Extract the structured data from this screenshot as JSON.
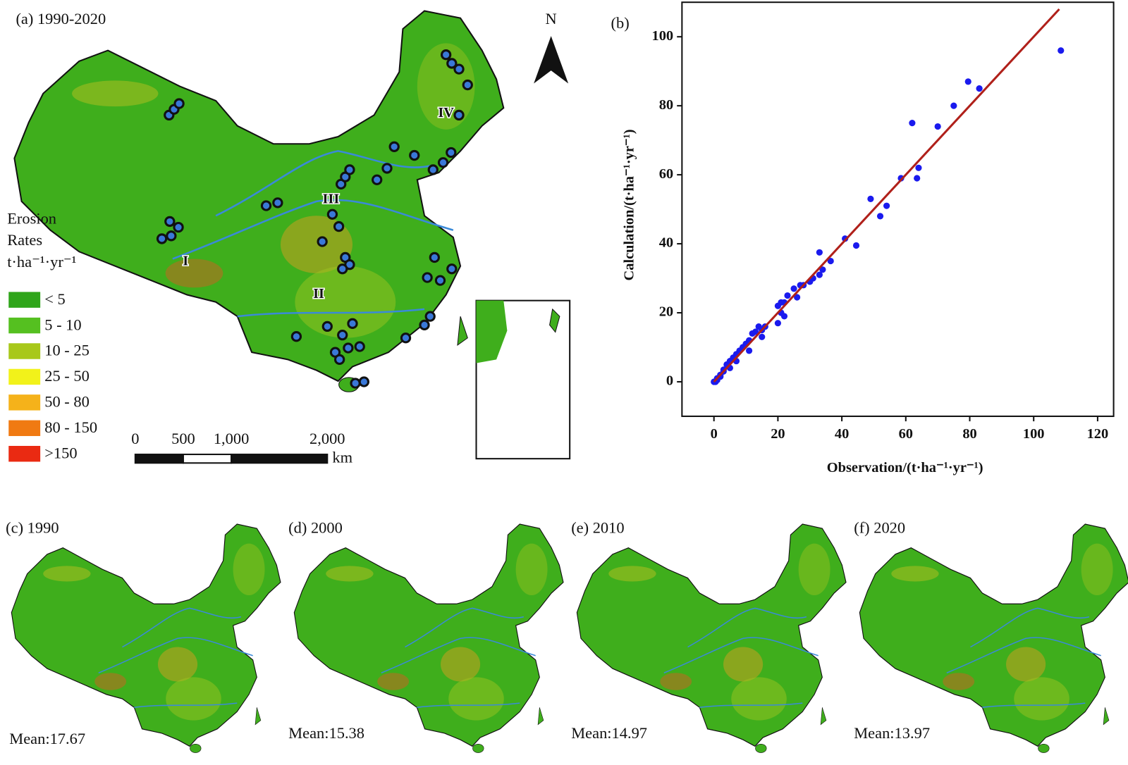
{
  "map_a": {
    "title": "(a) 1990-2020",
    "north": "N",
    "regions": [
      "I",
      "II",
      "III",
      "IV"
    ],
    "legend": {
      "title": [
        "Erosion",
        "Rates",
        "t·ha⁻¹·yr⁻¹"
      ],
      "classes": [
        {
          "label": "< 5",
          "color": "#2fa51a"
        },
        {
          "label": "5 - 10",
          "color": "#55c020"
        },
        {
          "label": "10 - 25",
          "color": "#a8c81a"
        },
        {
          "label": "25 - 50",
          "color": "#f2f21a"
        },
        {
          "label": "50 - 80",
          "color": "#f5b21a"
        },
        {
          "label": "80 - 150",
          "color": "#f07a12"
        },
        {
          "label": ">150",
          "color": "#ea2a12"
        }
      ]
    },
    "scale_bar": {
      "ticks": [
        0,
        500,
        {
          "value": 1000,
          "label": "1,000"
        },
        {
          "value": 2000,
          "label": "2,000"
        }
      ],
      "unit": "km"
    }
  },
  "chart_data": {
    "type": "scatter",
    "title": "(b)",
    "x_label": "Observation/(t·ha⁻¹·yr⁻¹)",
    "y_label": "Calculation/(t·ha⁻¹·yr⁻¹)",
    "xlim": [
      -10,
      125
    ],
    "ylim": [
      -10,
      110
    ],
    "xticks": [
      0,
      20,
      40,
      60,
      80,
      100,
      120
    ],
    "yticks": [
      0,
      20,
      40,
      60,
      80,
      100
    ],
    "point_color": "#1a1aee",
    "line_color": "#b0201a",
    "points": {
      "x": [
        108.5,
        79.5,
        83,
        75,
        62,
        70,
        64,
        58.5,
        63.5,
        49,
        54,
        52,
        41,
        44.5,
        33,
        36.5,
        34,
        33,
        31,
        30,
        28,
        27,
        25,
        26,
        23,
        22,
        21,
        20,
        21,
        20,
        22,
        16,
        15,
        14,
        13,
        12,
        15,
        11,
        10,
        9,
        11,
        8,
        7,
        6,
        7,
        5,
        4,
        5,
        3,
        3,
        2,
        2,
        1,
        1,
        0,
        0.5
      ],
      "y": [
        96,
        87,
        85,
        80,
        75,
        74,
        62,
        59,
        59,
        53,
        51,
        48,
        41.5,
        39.5,
        37.5,
        35,
        32.5,
        31,
        30,
        29,
        28,
        28,
        27,
        24.5,
        25,
        23,
        23,
        22,
        20,
        17,
        19,
        16,
        15,
        16,
        14.5,
        14,
        13,
        12,
        11,
        10,
        9,
        9,
        8,
        7,
        6,
        6,
        5,
        4,
        3.5,
        3,
        2,
        1.5,
        1,
        0.5,
        0,
        0
      ]
    },
    "fit_line": {
      "x": [
        0,
        108
      ],
      "y": [
        0,
        108
      ]
    }
  },
  "panels": [
    {
      "label": "(c) 1990",
      "mean_label": "Mean:",
      "mean": 17.67
    },
    {
      "label": "(d) 2000",
      "mean_label": "Mean:",
      "mean": 15.38
    },
    {
      "label": "(e) 2010",
      "mean_label": "Mean:",
      "mean": 14.97
    },
    {
      "label": "(f) 2020",
      "mean_label": "Mean:",
      "mean": 13.97
    }
  ]
}
